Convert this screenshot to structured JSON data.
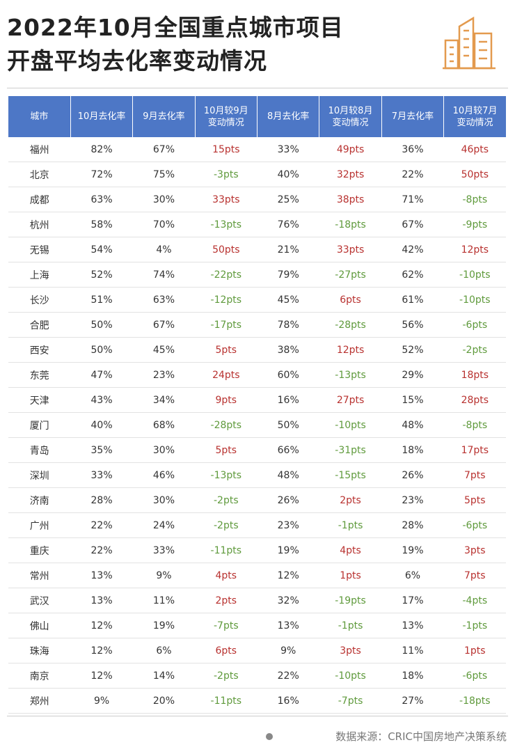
{
  "header": {
    "title": [
      "2022年10月全国重点城市项目",
      "开盘平均去化率变动情况"
    ]
  },
  "table": {
    "columns": [
      "城市",
      "10月去化率",
      "9月去化率",
      "10月较9月\n变动情况",
      "8月去化率",
      "10月较8月\n变动情况",
      "7月去化率",
      "10月较7月\n变动情况"
    ],
    "change_columns": [
      3,
      5,
      7
    ],
    "header_color": "#4d77c6",
    "up_color": "#b8312f",
    "down_color": "#5f9a3c",
    "rows": [
      [
        "福州",
        "82%",
        "67%",
        "15pts",
        "33%",
        "49pts",
        "36%",
        "46pts"
      ],
      [
        "北京",
        "72%",
        "75%",
        "-3pts",
        "40%",
        "32pts",
        "22%",
        "50pts"
      ],
      [
        "成都",
        "63%",
        "30%",
        "33pts",
        "25%",
        "38pts",
        "71%",
        "-8pts"
      ],
      [
        "杭州",
        "58%",
        "70%",
        "-13pts",
        "76%",
        "-18pts",
        "67%",
        "-9pts"
      ],
      [
        "无锡",
        "54%",
        "4%",
        "50pts",
        "21%",
        "33pts",
        "42%",
        "12pts"
      ],
      [
        "上海",
        "52%",
        "74%",
        "-22pts",
        "79%",
        "-27pts",
        "62%",
        "-10pts"
      ],
      [
        "长沙",
        "51%",
        "63%",
        "-12pts",
        "45%",
        "6pts",
        "61%",
        "-10pts"
      ],
      [
        "合肥",
        "50%",
        "67%",
        "-17pts",
        "78%",
        "-28pts",
        "56%",
        "-6pts"
      ],
      [
        "西安",
        "50%",
        "45%",
        "5pts",
        "38%",
        "12pts",
        "52%",
        "-2pts"
      ],
      [
        "东莞",
        "47%",
        "23%",
        "24pts",
        "60%",
        "-13pts",
        "29%",
        "18pts"
      ],
      [
        "天津",
        "43%",
        "34%",
        "9pts",
        "16%",
        "27pts",
        "15%",
        "28pts"
      ],
      [
        "厦门",
        "40%",
        "68%",
        "-28pts",
        "50%",
        "-10pts",
        "48%",
        "-8pts"
      ],
      [
        "青岛",
        "35%",
        "30%",
        "5pts",
        "66%",
        "-31pts",
        "18%",
        "17pts"
      ],
      [
        "深圳",
        "33%",
        "46%",
        "-13pts",
        "48%",
        "-15pts",
        "26%",
        "7pts"
      ],
      [
        "济南",
        "28%",
        "30%",
        "-2pts",
        "26%",
        "2pts",
        "23%",
        "5pts"
      ],
      [
        "广州",
        "22%",
        "24%",
        "-2pts",
        "23%",
        "-1pts",
        "28%",
        "-6pts"
      ],
      [
        "重庆",
        "22%",
        "33%",
        "-11pts",
        "19%",
        "4pts",
        "19%",
        "3pts"
      ],
      [
        "常州",
        "13%",
        "9%",
        "4pts",
        "12%",
        "1pts",
        "6%",
        "7pts"
      ],
      [
        "武汉",
        "13%",
        "11%",
        "2pts",
        "32%",
        "-19pts",
        "17%",
        "-4pts"
      ],
      [
        "佛山",
        "12%",
        "19%",
        "-7pts",
        "13%",
        "-1pts",
        "13%",
        "-1pts"
      ],
      [
        "珠海",
        "12%",
        "6%",
        "6pts",
        "9%",
        "3pts",
        "11%",
        "1pts"
      ],
      [
        "南京",
        "12%",
        "14%",
        "-2pts",
        "22%",
        "-10pts",
        "18%",
        "-6pts"
      ],
      [
        "郑州",
        "9%",
        "20%",
        "-11pts",
        "16%",
        "-7pts",
        "27%",
        "-18pts"
      ]
    ]
  },
  "source": "数据来源：CRIC中国房地产决策系统"
}
